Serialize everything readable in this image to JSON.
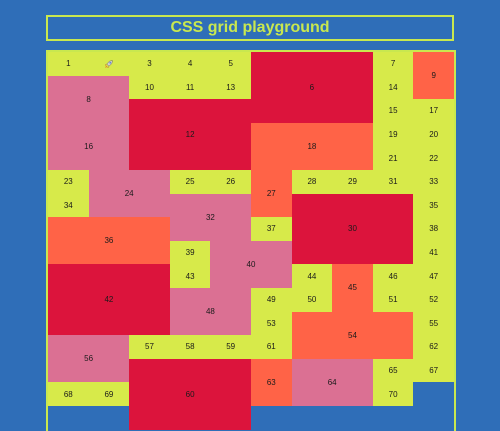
{
  "title": "CSS grid playground",
  "colors": {
    "background": "#2f6eb8",
    "lime": "#d7ea4a",
    "crimson": "#dc143c",
    "tomato": "#ff6347",
    "pink": "#db7093"
  },
  "icon": "rocket-icon",
  "cells": [
    {
      "label": "1",
      "c": 1,
      "r": 1,
      "cs": 1,
      "rs": 1,
      "color": "lime"
    },
    {
      "label": "",
      "c": 2,
      "r": 1,
      "cs": 1,
      "rs": 1,
      "color": "lime",
      "icon": true
    },
    {
      "label": "3",
      "c": 3,
      "r": 1,
      "cs": 1,
      "rs": 1,
      "color": "lime"
    },
    {
      "label": "4",
      "c": 4,
      "r": 1,
      "cs": 1,
      "rs": 1,
      "color": "lime"
    },
    {
      "label": "5",
      "c": 5,
      "r": 1,
      "cs": 1,
      "rs": 1,
      "color": "lime"
    },
    {
      "label": "6",
      "c": 6,
      "r": 1,
      "cs": 3,
      "rs": 3,
      "color": "crimson"
    },
    {
      "label": "7",
      "c": 9,
      "r": 1,
      "cs": 1,
      "rs": 1,
      "color": "lime"
    },
    {
      "label": "9",
      "c": 10,
      "r": 1,
      "cs": 1,
      "rs": 2,
      "color": "tomato"
    },
    {
      "label": "8",
      "c": 1,
      "r": 2,
      "cs": 2,
      "rs": 2,
      "color": "pink"
    },
    {
      "label": "10",
      "c": 3,
      "r": 2,
      "cs": 1,
      "rs": 1,
      "color": "lime"
    },
    {
      "label": "11",
      "c": 4,
      "r": 2,
      "cs": 1,
      "rs": 1,
      "color": "lime"
    },
    {
      "label": "13",
      "c": 5,
      "r": 2,
      "cs": 1,
      "rs": 1,
      "color": "lime"
    },
    {
      "label": "14",
      "c": 9,
      "r": 2,
      "cs": 1,
      "rs": 1,
      "color": "lime"
    },
    {
      "label": "12",
      "c": 3,
      "r": 3,
      "cs": 3,
      "rs": 3,
      "color": "crimson"
    },
    {
      "label": "15",
      "c": 9,
      "r": 3,
      "cs": 1,
      "rs": 1,
      "color": "lime"
    },
    {
      "label": "17",
      "c": 10,
      "r": 3,
      "cs": 1,
      "rs": 1,
      "color": "lime"
    },
    {
      "label": "16",
      "c": 1,
      "r": 4,
      "cs": 2,
      "rs": 2,
      "color": "pink"
    },
    {
      "label": "18",
      "c": 6,
      "r": 4,
      "cs": 3,
      "rs": 2,
      "color": "tomato"
    },
    {
      "label": "19",
      "c": 9,
      "r": 4,
      "cs": 1,
      "rs": 1,
      "color": "lime"
    },
    {
      "label": "20",
      "c": 10,
      "r": 4,
      "cs": 1,
      "rs": 1,
      "color": "lime"
    },
    {
      "label": "21",
      "c": 9,
      "r": 5,
      "cs": 1,
      "rs": 1,
      "color": "lime"
    },
    {
      "label": "22",
      "c": 10,
      "r": 5,
      "cs": 1,
      "rs": 1,
      "color": "lime"
    },
    {
      "label": "23",
      "c": 1,
      "r": 6,
      "cs": 1,
      "rs": 1,
      "color": "lime"
    },
    {
      "label": "24",
      "c": 2,
      "r": 6,
      "cs": 2,
      "rs": 2,
      "color": "pink"
    },
    {
      "label": "25",
      "c": 4,
      "r": 6,
      "cs": 1,
      "rs": 1,
      "color": "lime"
    },
    {
      "label": "26",
      "c": 5,
      "r": 6,
      "cs": 1,
      "rs": 1,
      "color": "lime"
    },
    {
      "label": "27",
      "c": 6,
      "r": 6,
      "cs": 1,
      "rs": 2,
      "color": "tomato"
    },
    {
      "label": "28",
      "c": 7,
      "r": 6,
      "cs": 1,
      "rs": 1,
      "color": "lime"
    },
    {
      "label": "29",
      "c": 8,
      "r": 6,
      "cs": 1,
      "rs": 1,
      "color": "lime"
    },
    {
      "label": "31",
      "c": 9,
      "r": 6,
      "cs": 1,
      "rs": 1,
      "color": "lime"
    },
    {
      "label": "33",
      "c": 10,
      "r": 6,
      "cs": 1,
      "rs": 1,
      "color": "lime"
    },
    {
      "label": "34",
      "c": 1,
      "r": 7,
      "cs": 1,
      "rs": 1,
      "color": "lime"
    },
    {
      "label": "32",
      "c": 4,
      "r": 7,
      "cs": 2,
      "rs": 2,
      "color": "pink"
    },
    {
      "label": "30",
      "c": 7,
      "r": 7,
      "cs": 3,
      "rs": 3,
      "color": "crimson"
    },
    {
      "label": "35",
      "c": 10,
      "r": 7,
      "cs": 1,
      "rs": 1,
      "color": "lime"
    },
    {
      "label": "36",
      "c": 1,
      "r": 8,
      "cs": 3,
      "rs": 2,
      "color": "tomato"
    },
    {
      "label": "37",
      "c": 6,
      "r": 8,
      "cs": 1,
      "rs": 1,
      "color": "lime"
    },
    {
      "label": "38",
      "c": 10,
      "r": 8,
      "cs": 1,
      "rs": 1,
      "color": "lime"
    },
    {
      "label": "39",
      "c": 4,
      "r": 9,
      "cs": 1,
      "rs": 1,
      "color": "lime"
    },
    {
      "label": "40",
      "c": 5,
      "r": 9,
      "cs": 2,
      "rs": 2,
      "color": "pink"
    },
    {
      "label": "41",
      "c": 10,
      "r": 9,
      "cs": 1,
      "rs": 1,
      "color": "lime"
    },
    {
      "label": "42",
      "c": 1,
      "r": 10,
      "cs": 3,
      "rs": 3,
      "color": "crimson"
    },
    {
      "label": "43",
      "c": 4,
      "r": 10,
      "cs": 1,
      "rs": 1,
      "color": "lime"
    },
    {
      "label": "44",
      "c": 7,
      "r": 10,
      "cs": 1,
      "rs": 1,
      "color": "lime"
    },
    {
      "label": "45",
      "c": 8,
      "r": 10,
      "cs": 1,
      "rs": 2,
      "color": "tomato"
    },
    {
      "label": "46",
      "c": 9,
      "r": 10,
      "cs": 1,
      "rs": 1,
      "color": "lime"
    },
    {
      "label": "47",
      "c": 10,
      "r": 10,
      "cs": 1,
      "rs": 1,
      "color": "lime"
    },
    {
      "label": "48",
      "c": 4,
      "r": 11,
      "cs": 2,
      "rs": 2,
      "color": "pink"
    },
    {
      "label": "49",
      "c": 6,
      "r": 11,
      "cs": 1,
      "rs": 1,
      "color": "lime"
    },
    {
      "label": "50",
      "c": 7,
      "r": 11,
      "cs": 1,
      "rs": 1,
      "color": "lime"
    },
    {
      "label": "51",
      "c": 9,
      "r": 11,
      "cs": 1,
      "rs": 1,
      "color": "lime"
    },
    {
      "label": "52",
      "c": 10,
      "r": 11,
      "cs": 1,
      "rs": 1,
      "color": "lime"
    },
    {
      "label": "53",
      "c": 6,
      "r": 12,
      "cs": 1,
      "rs": 1,
      "color": "lime"
    },
    {
      "label": "54",
      "c": 7,
      "r": 12,
      "cs": 3,
      "rs": 2,
      "color": "tomato"
    },
    {
      "label": "55",
      "c": 10,
      "r": 12,
      "cs": 1,
      "rs": 1,
      "color": "lime"
    },
    {
      "label": "56",
      "c": 1,
      "r": 13,
      "cs": 2,
      "rs": 2,
      "color": "pink"
    },
    {
      "label": "57",
      "c": 3,
      "r": 13,
      "cs": 1,
      "rs": 1,
      "color": "lime"
    },
    {
      "label": "58",
      "c": 4,
      "r": 13,
      "cs": 1,
      "rs": 1,
      "color": "lime"
    },
    {
      "label": "59",
      "c": 5,
      "r": 13,
      "cs": 1,
      "rs": 1,
      "color": "lime"
    },
    {
      "label": "61",
      "c": 6,
      "r": 13,
      "cs": 1,
      "rs": 1,
      "color": "lime"
    },
    {
      "label": "62",
      "c": 10,
      "r": 13,
      "cs": 1,
      "rs": 1,
      "color": "lime"
    },
    {
      "label": "60",
      "c": 3,
      "r": 14,
      "cs": 3,
      "rs": 3,
      "color": "crimson"
    },
    {
      "label": "63",
      "c": 6,
      "r": 14,
      "cs": 1,
      "rs": 2,
      "color": "tomato"
    },
    {
      "label": "64",
      "c": 7,
      "r": 14,
      "cs": 2,
      "rs": 2,
      "color": "pink"
    },
    {
      "label": "65",
      "c": 9,
      "r": 14,
      "cs": 1,
      "rs": 1,
      "color": "lime"
    },
    {
      "label": "67",
      "c": 10,
      "r": 14,
      "cs": 1,
      "rs": 1,
      "color": "lime"
    },
    {
      "label": "68",
      "c": 1,
      "r": 15,
      "cs": 1,
      "rs": 1,
      "color": "lime"
    },
    {
      "label": "69",
      "c": 2,
      "r": 15,
      "cs": 1,
      "rs": 1,
      "color": "lime"
    },
    {
      "label": "70",
      "c": 9,
      "r": 15,
      "cs": 1,
      "rs": 1,
      "color": "lime"
    }
  ]
}
